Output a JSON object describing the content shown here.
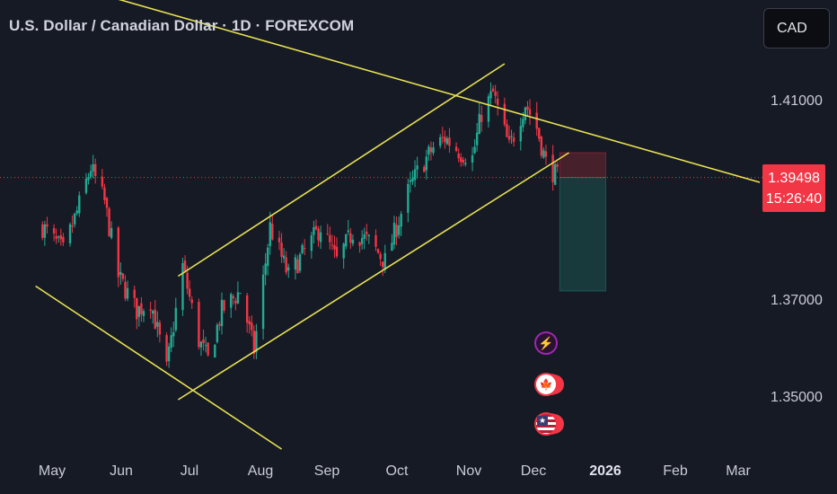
{
  "header": {
    "title": "U.S. Dollar / Canadian Dollar · 1D · FOREXCOM"
  },
  "currency_button": {
    "label": "CAD"
  },
  "price_tag": {
    "price": "1.39498",
    "countdown": "15:26:40",
    "color": "#f23645"
  },
  "colors": {
    "background": "#161a25",
    "up": "#22ab94",
    "down": "#f23645",
    "trendline": "#e9e352"
  },
  "events": [
    {
      "name": "lightning-icon",
      "symbol": "⚡"
    },
    {
      "name": "canada-flag-icon",
      "symbol": "🍁"
    },
    {
      "name": "us-flag-icon",
      "symbol": "★"
    }
  ],
  "chart_data": {
    "type": "candlestick",
    "symbol": "USDCAD",
    "timeframe": "1D",
    "x_ticks": [
      "May",
      "Jun",
      "Jul",
      "Aug",
      "Sep",
      "Oct",
      "Nov",
      "Dec",
      "2026",
      "Feb",
      "Mar"
    ],
    "y_ticks": [
      "1.41000",
      "1.37000",
      "1.35000"
    ],
    "ylim": [
      1.338,
      1.428
    ],
    "current_price": 1.39498,
    "approx_close_path": [
      [
        "2025-04-23",
        1.385
      ],
      [
        "2025-05-02",
        1.38
      ],
      [
        "2025-05-08",
        1.388
      ],
      [
        "2025-05-14",
        1.397
      ],
      [
        "2025-05-20",
        1.39
      ],
      [
        "2025-05-26",
        1.375
      ],
      [
        "2025-06-03",
        1.368
      ],
      [
        "2025-06-09",
        1.37
      ],
      [
        "2025-06-16",
        1.356
      ],
      [
        "2025-06-23",
        1.377
      ],
      [
        "2025-06-30",
        1.362
      ],
      [
        "2025-07-04",
        1.358
      ],
      [
        "2025-07-10",
        1.368
      ],
      [
        "2025-07-18",
        1.372
      ],
      [
        "2025-07-24",
        1.36
      ],
      [
        "2025-07-31",
        1.385
      ],
      [
        "2025-08-08",
        1.375
      ],
      [
        "2025-08-15",
        1.38
      ],
      [
        "2025-08-22",
        1.385
      ],
      [
        "2025-08-29",
        1.378
      ],
      [
        "2025-09-05",
        1.384
      ],
      [
        "2025-09-12",
        1.382
      ],
      [
        "2025-09-19",
        1.378
      ],
      [
        "2025-09-29",
        1.392
      ],
      [
        "2025-10-03",
        1.396
      ],
      [
        "2025-10-10",
        1.401
      ],
      [
        "2025-10-15",
        1.403
      ],
      [
        "2025-10-22",
        1.4
      ],
      [
        "2025-10-27",
        1.399
      ],
      [
        "2025-10-31",
        1.408
      ],
      [
        "2025-11-05",
        1.412
      ],
      [
        "2025-11-12",
        1.401
      ],
      [
        "2025-11-19",
        1.41
      ],
      [
        "2025-11-24",
        1.405
      ],
      [
        "2025-11-28",
        1.398
      ],
      [
        "2025-12-03",
        1.395
      ]
    ],
    "trendlines": [
      {
        "name": "channel-upper",
        "from": [
          "2025-06-21",
          1.375
        ],
        "to": [
          "2025-11-10",
          1.418
        ]
      },
      {
        "name": "channel-lower",
        "from": [
          "2025-06-21",
          1.35
        ],
        "to": [
          "2025-12-08",
          1.4
        ]
      },
      {
        "name": "descending-upper",
        "from": [
          "2025-02-10",
          1.445
        ],
        "to": [
          "2026-03-01",
          1.394
        ]
      },
      {
        "name": "descending-lower",
        "from": [
          "2025-04-20",
          1.373
        ],
        "to": [
          "2025-08-05",
          1.34
        ]
      }
    ],
    "position": {
      "type": "short",
      "entry": 1.39498,
      "stop": 1.4,
      "target": 1.372
    }
  }
}
